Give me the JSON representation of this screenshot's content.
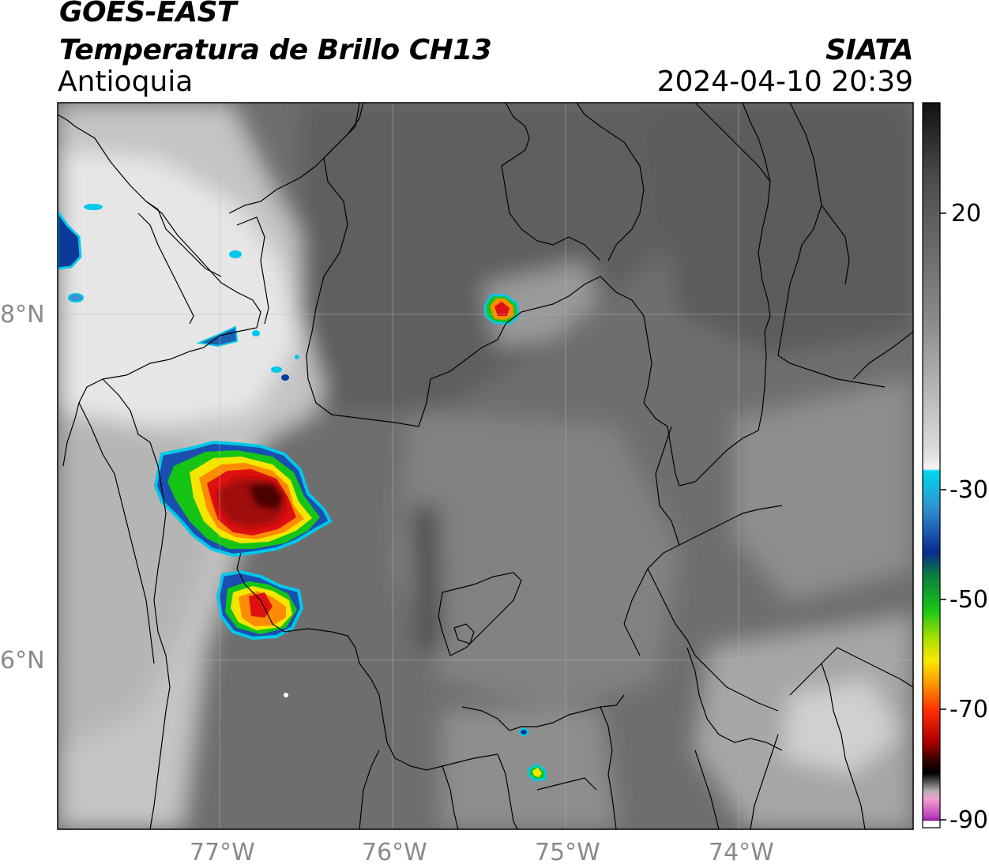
{
  "header": {
    "satellite": "GOES-EAST",
    "product": "Temperatura de Brillo CH13",
    "region": "Antioquia",
    "organization": "SIATA",
    "timestamp": "2024-04-10 20:39"
  },
  "map": {
    "latitude_labels": [
      "8°N",
      "6°N"
    ],
    "longitude_labels": [
      "77°W",
      "76°W",
      "75°W",
      "74°W"
    ]
  },
  "colorbar": {
    "tick_labels": [
      "20",
      "-30",
      "-50",
      "-70",
      "-90"
    ]
  },
  "colors": {
    "storm_core": "#8b0000",
    "storm_red": "#e01010",
    "storm_orange": "#ff8c00",
    "storm_yellow": "#f5e600",
    "storm_green": "#16c416",
    "storm_blue": "#0a3a9a",
    "cyan": "#00c8e8",
    "magenta": "#b040b0"
  }
}
